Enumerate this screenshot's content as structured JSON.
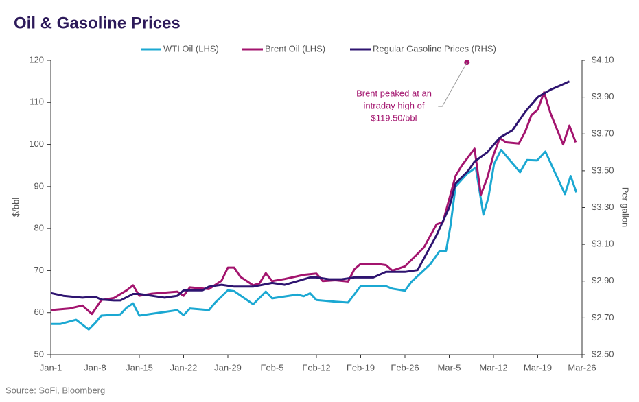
{
  "chart_data": {
    "type": "line",
    "title": "Oil & Gasoline Prices",
    "source": "Source: SoFi, Bloomberg",
    "ylabel": "$/bbl",
    "y2label": "Per gallon",
    "xlim": [
      0,
      84
    ],
    "xticks": [
      {
        "value": 0,
        "label": "Jan-1"
      },
      {
        "value": 7,
        "label": "Jan-8"
      },
      {
        "value": 14,
        "label": "Jan-15"
      },
      {
        "value": 21,
        "label": "Jan-22"
      },
      {
        "value": 28,
        "label": "Jan-29"
      },
      {
        "value": 35,
        "label": "Feb-5"
      },
      {
        "value": 42,
        "label": "Feb-12"
      },
      {
        "value": 49,
        "label": "Feb-19"
      },
      {
        "value": 56,
        "label": "Feb-26"
      },
      {
        "value": 63,
        "label": "Mar-5"
      },
      {
        "value": 70,
        "label": "Mar-12"
      },
      {
        "value": 77,
        "label": "Mar-19"
      },
      {
        "value": 84,
        "label": "Mar-26"
      }
    ],
    "ylim": [
      50,
      120
    ],
    "yticks": [
      50,
      60,
      70,
      80,
      90,
      100,
      110,
      120
    ],
    "y2lim": [
      2.5,
      4.1
    ],
    "y2ticks": [
      {
        "value": 2.5,
        "label": "$2.50"
      },
      {
        "value": 2.7,
        "label": "$2.70"
      },
      {
        "value": 2.9,
        "label": "$2.90"
      },
      {
        "value": 3.1,
        "label": "$3.10"
      },
      {
        "value": 3.3,
        "label": "$3.30"
      },
      {
        "value": 3.5,
        "label": "$3.50"
      },
      {
        "value": 3.7,
        "label": "$3.70"
      },
      {
        "value": 3.9,
        "label": "$3.90"
      },
      {
        "value": 4.1,
        "label": "$4.10"
      }
    ],
    "series": [
      {
        "name": "WTI Oil (LHS)",
        "color": "#1ba8d2",
        "x": [
          0,
          1.5,
          4,
          6,
          7,
          8,
          11,
          12,
          13,
          14,
          20,
          21,
          22,
          25,
          26,
          28,
          29,
          32,
          34,
          35,
          39,
          40,
          41,
          42,
          45,
          47,
          49,
          53,
          54,
          56,
          57,
          60,
          61.5,
          62.5,
          63.2,
          64,
          65.8,
          67.2,
          68.4,
          69.2,
          70.1,
          71.2,
          74.2,
          75.3,
          76.9,
          78.2,
          81.3,
          82.2,
          83.1
        ],
        "values": [
          57.3,
          57.3,
          58.3,
          56,
          57.5,
          59.3,
          59.6,
          61.2,
          62.2,
          59.3,
          60.6,
          59.4,
          61,
          60.6,
          62.4,
          65.3,
          65.1,
          62,
          65,
          63.4,
          64.3,
          63.9,
          64.6,
          63,
          62.6,
          62.4,
          66.3,
          66.3,
          65.7,
          65.2,
          67.3,
          71.5,
          74.7,
          74.7,
          80.6,
          90,
          93,
          94.5,
          83.3,
          87.4,
          95.4,
          98.7,
          93.4,
          96.3,
          96.2,
          98.3,
          88.2,
          92.5,
          88.6
        ]
      },
      {
        "name": "Brent Oil (LHS)",
        "color": "#a3146e",
        "x": [
          0,
          3,
          5,
          6.5,
          8,
          10,
          12,
          13,
          14,
          16,
          20,
          21,
          22,
          25,
          27,
          28,
          29,
          30,
          32,
          33,
          34,
          35,
          37,
          40,
          42,
          43,
          45,
          47,
          48,
          49,
          52,
          53,
          54,
          56,
          59,
          61,
          62,
          64,
          65,
          67,
          68,
          69,
          70,
          71,
          72,
          74,
          75,
          76,
          77,
          78,
          79,
          81,
          82,
          83
        ],
        "values": [
          60.6,
          61,
          61.7,
          59.7,
          63,
          63.5,
          65.3,
          66.5,
          64,
          64.5,
          65,
          64,
          66,
          65.6,
          67.6,
          70.7,
          70.7,
          68.5,
          66.5,
          67,
          69.4,
          67.5,
          68,
          69,
          69.3,
          67.5,
          67.7,
          67.4,
          70.3,
          71.6,
          71.5,
          71.3,
          70,
          71,
          75.5,
          81,
          81.5,
          92.5,
          95,
          99,
          88,
          92,
          97.5,
          101.5,
          100.5,
          100.2,
          103,
          107,
          108.3,
          112.4,
          107.5,
          100,
          104.5,
          100.5
        ]
      },
      {
        "name": "Regular Gasoline Prices (RHS)",
        "color": "#2e1470",
        "axis": "y2",
        "x": [
          0,
          2,
          5,
          7,
          8,
          10,
          11,
          13,
          14,
          16,
          18,
          20,
          21,
          24,
          25,
          27,
          29,
          32,
          35,
          37,
          39,
          41,
          42,
          44,
          46,
          48,
          51,
          53,
          56,
          58,
          61,
          63,
          64,
          66,
          67,
          69,
          71,
          73,
          75,
          77,
          79,
          81,
          82
        ],
        "values": [
          2.835,
          2.82,
          2.81,
          2.815,
          2.8,
          2.795,
          2.795,
          2.83,
          2.83,
          2.82,
          2.81,
          2.82,
          2.85,
          2.85,
          2.87,
          2.88,
          2.87,
          2.87,
          2.89,
          2.88,
          2.9,
          2.92,
          2.92,
          2.91,
          2.91,
          2.92,
          2.92,
          2.95,
          2.95,
          2.96,
          3.15,
          3.3,
          3.43,
          3.5,
          3.55,
          3.6,
          3.68,
          3.72,
          3.82,
          3.9,
          3.94,
          3.97,
          3.985
        ]
      }
    ],
    "annotation": {
      "text": [
        "Brent peaked at an",
        "intraday high of",
        "$119.50/bbl"
      ],
      "x": 65.8,
      "y": 119.5,
      "color": "#a3146e"
    }
  }
}
